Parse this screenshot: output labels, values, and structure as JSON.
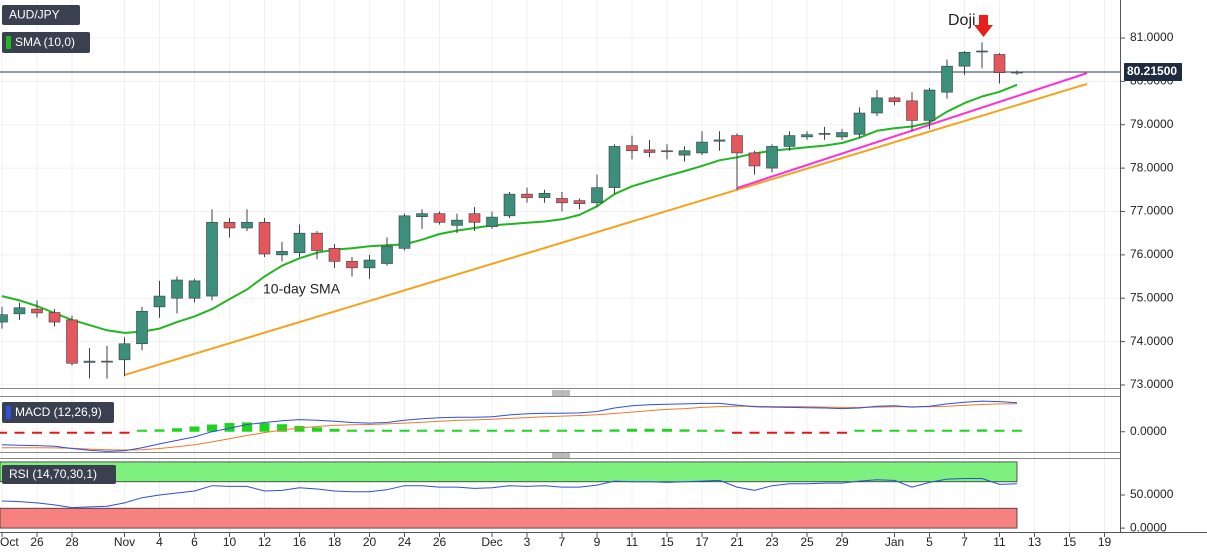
{
  "chart_data": {
    "type": "candlestick",
    "title": "AUD/JPY",
    "up_color": "#3b8f7b",
    "down_color": "#e4585c",
    "open": [
      74.45,
      74.64,
      74.75,
      74.67,
      74.5,
      73.52,
      73.53,
      73.58,
      73.95,
      74.8,
      75.0,
      75.0,
      75.05,
      76.75,
      76.62,
      76.75,
      76.0,
      76.05,
      76.5,
      76.15,
      75.85,
      75.7,
      75.8,
      76.15,
      76.88,
      76.95,
      76.68,
      76.95,
      76.65,
      76.9,
      77.4,
      77.32,
      77.3,
      77.25,
      77.2,
      77.55,
      78.52,
      78.42,
      78.4,
      78.3,
      78.35,
      78.62,
      78.75,
      78.35,
      78.0,
      78.5,
      78.72,
      78.78,
      78.72,
      78.78,
      79.27,
      79.62,
      79.55,
      79.1,
      79.75,
      80.35,
      80.68,
      80.62,
      80.2
    ],
    "high": [
      74.8,
      74.9,
      74.95,
      74.75,
      74.6,
      73.85,
      73.9,
      74.1,
      74.8,
      75.4,
      75.5,
      75.45,
      77.05,
      76.85,
      77.05,
      76.85,
      76.3,
      76.7,
      76.55,
      76.25,
      75.95,
      76.0,
      76.4,
      76.95,
      77.05,
      77.0,
      76.95,
      77.1,
      77.0,
      77.45,
      77.55,
      77.5,
      77.45,
      77.3,
      77.85,
      78.55,
      78.75,
      78.65,
      78.55,
      78.5,
      78.85,
      78.85,
      78.8,
      78.4,
      78.55,
      78.85,
      78.85,
      78.95,
      78.9,
      79.4,
      79.8,
      79.65,
      79.75,
      79.85,
      80.5,
      80.7,
      80.9,
      80.65,
      80.25
    ],
    "low": [
      74.3,
      74.5,
      74.55,
      74.35,
      73.45,
      73.15,
      73.15,
      73.2,
      73.8,
      74.55,
      74.65,
      74.9,
      74.95,
      76.4,
      76.55,
      75.95,
      75.85,
      75.95,
      75.9,
      75.7,
      75.5,
      75.45,
      75.75,
      76.1,
      76.6,
      76.7,
      76.5,
      76.55,
      76.6,
      76.85,
      77.2,
      77.2,
      77.0,
      77.05,
      77.1,
      77.4,
      78.2,
      78.25,
      78.2,
      78.15,
      78.3,
      78.4,
      77.5,
      77.85,
      77.9,
      78.4,
      78.65,
      78.65,
      78.65,
      78.7,
      79.2,
      79.45,
      78.85,
      78.9,
      79.6,
      80.15,
      80.3,
      79.95,
      80.15
    ],
    "close": [
      74.62,
      74.78,
      74.66,
      74.45,
      73.5,
      73.55,
      73.55,
      73.95,
      74.7,
      75.05,
      75.42,
      75.4,
      76.75,
      76.62,
      76.75,
      76.02,
      76.08,
      76.5,
      76.1,
      75.85,
      75.7,
      75.88,
      76.2,
      76.9,
      76.95,
      76.75,
      76.8,
      76.75,
      76.87,
      77.4,
      77.32,
      77.42,
      77.2,
      77.18,
      77.55,
      78.5,
      78.4,
      78.36,
      78.38,
      78.4,
      78.6,
      78.65,
      78.35,
      78.05,
      78.5,
      78.75,
      78.77,
      78.8,
      78.82,
      79.27,
      79.62,
      79.53,
      79.1,
      79.8,
      80.35,
      80.67,
      80.7,
      80.2,
      80.215
    ],
    "sma": {
      "name": "SMA (10,0)",
      "color": "#22b522",
      "values": [
        75.05,
        74.95,
        74.82,
        74.66,
        74.5,
        74.38,
        74.26,
        74.2,
        74.23,
        74.3,
        74.45,
        74.58,
        74.75,
        74.98,
        75.2,
        75.5,
        75.75,
        75.92,
        76.05,
        76.12,
        76.15,
        76.2,
        76.22,
        76.24,
        76.35,
        76.48,
        76.56,
        76.62,
        76.68,
        76.71,
        76.74,
        76.77,
        76.82,
        76.92,
        77.12,
        77.4,
        77.58,
        77.7,
        77.82,
        77.93,
        78.05,
        78.18,
        78.25,
        78.34,
        78.4,
        78.44,
        78.48,
        78.52,
        78.58,
        78.7,
        78.86,
        78.92,
        78.96,
        79.05,
        79.3,
        79.5,
        79.65,
        79.76,
        79.92
      ]
    },
    "trendlines": [
      {
        "color": "#f5a21c",
        "points": [
          [
            7,
            73.23
          ],
          [
            62,
            79.94
          ]
        ]
      },
      {
        "color": "#ff2ed6",
        "points": [
          [
            42,
            77.54
          ],
          [
            62,
            80.19
          ]
        ]
      }
    ],
    "annotations": [
      "Doji",
      "10-day SMA"
    ],
    "last_price": {
      "value": 80.215,
      "label": "80.21500"
    },
    "grid": true,
    "xlim": [
      0,
      64
    ],
    "xticks": [
      {
        "value": 0,
        "label": "Oct"
      },
      {
        "value": 2,
        "label": "26"
      },
      {
        "value": 4,
        "label": "28"
      },
      {
        "value": 7,
        "label": "Nov"
      },
      {
        "value": 9,
        "label": "4"
      },
      {
        "value": 11,
        "label": "6"
      },
      {
        "value": 13,
        "label": "10"
      },
      {
        "value": 15,
        "label": "12"
      },
      {
        "value": 17,
        "label": "16"
      },
      {
        "value": 19,
        "label": "18"
      },
      {
        "value": 21,
        "label": "20"
      },
      {
        "value": 23,
        "label": "24"
      },
      {
        "value": 25,
        "label": "26"
      },
      {
        "value": 28,
        "label": "Dec"
      },
      {
        "value": 30,
        "label": "3"
      },
      {
        "value": 32,
        "label": "7"
      },
      {
        "value": 34,
        "label": "9"
      },
      {
        "value": 36,
        "label": "11"
      },
      {
        "value": 38,
        "label": "15"
      },
      {
        "value": 40,
        "label": "17"
      },
      {
        "value": 42,
        "label": "21"
      },
      {
        "value": 44,
        "label": "23"
      },
      {
        "value": 46,
        "label": "25"
      },
      {
        "value": 48,
        "label": "29"
      },
      {
        "value": 51,
        "label": "Jan"
      },
      {
        "value": 53,
        "label": "5"
      },
      {
        "value": 55,
        "label": "7"
      },
      {
        "value": 57,
        "label": "11"
      },
      {
        "value": 59,
        "label": "13"
      },
      {
        "value": 61,
        "label": "15"
      },
      {
        "value": 63,
        "label": "19"
      }
    ],
    "ylim": [
      72.93,
      81.876
    ],
    "yticks": [
      {
        "value": 81,
        "label": "81.0000"
      },
      {
        "value": 80,
        "label": "80.0000"
      },
      {
        "value": 79,
        "label": "79.0000"
      },
      {
        "value": 78,
        "label": "78.0000"
      },
      {
        "value": 77,
        "label": "77.0000"
      },
      {
        "value": 76,
        "label": "76.0000"
      },
      {
        "value": 75,
        "label": "75.0000"
      },
      {
        "value": 74,
        "label": "74.0000"
      },
      {
        "value": 73,
        "label": "73.0000"
      }
    ],
    "macd": {
      "label": "MACD (12,26,9)",
      "ylim": [
        -0.7,
        1.2
      ],
      "yticks": [
        {
          "value": 0,
          "label": "0.0000"
        }
      ],
      "line": {
        "color": "#2f4fe0",
        "values": [
          -0.45,
          -0.47,
          -0.48,
          -0.5,
          -0.58,
          -0.64,
          -0.68,
          -0.66,
          -0.55,
          -0.42,
          -0.3,
          -0.18,
          0.0,
          0.12,
          0.25,
          0.32,
          0.38,
          0.42,
          0.4,
          0.36,
          0.32,
          0.3,
          0.32,
          0.4,
          0.45,
          0.48,
          0.5,
          0.5,
          0.52,
          0.58,
          0.62,
          0.64,
          0.64,
          0.65,
          0.7,
          0.82,
          0.9,
          0.93,
          0.95,
          0.96,
          0.98,
          0.98,
          0.92,
          0.86,
          0.85,
          0.84,
          0.83,
          0.82,
          0.8,
          0.82,
          0.88,
          0.9,
          0.85,
          0.88,
          0.96,
          1.02,
          1.06,
          1.04,
          1.0
        ]
      },
      "signal": {
        "color": "#f07a2a",
        "values": [
          -0.55,
          -0.55,
          -0.55,
          -0.56,
          -0.57,
          -0.6,
          -0.62,
          -0.63,
          -0.62,
          -0.58,
          -0.52,
          -0.45,
          -0.35,
          -0.24,
          -0.13,
          -0.03,
          0.06,
          0.13,
          0.18,
          0.22,
          0.24,
          0.25,
          0.27,
          0.3,
          0.33,
          0.36,
          0.39,
          0.41,
          0.43,
          0.46,
          0.49,
          0.52,
          0.54,
          0.56,
          0.59,
          0.63,
          0.68,
          0.73,
          0.77,
          0.8,
          0.84,
          0.87,
          0.88,
          0.88,
          0.87,
          0.87,
          0.86,
          0.85,
          0.84,
          0.84,
          0.85,
          0.86,
          0.86,
          0.86,
          0.88,
          0.91,
          0.94,
          0.96,
          0.97
        ]
      },
      "histogram": {
        "up_color": "#1ed41e",
        "down_color": "#e01818",
        "values": [
          -0.06,
          -0.06,
          -0.06,
          -0.06,
          -0.06,
          -0.06,
          -0.06,
          -0.04,
          0.04,
          0.08,
          0.12,
          0.18,
          0.25,
          0.3,
          0.32,
          0.3,
          0.26,
          0.2,
          0.15,
          0.1,
          0.07,
          0.05,
          0.05,
          0.06,
          0.06,
          0.06,
          0.05,
          0.05,
          0.05,
          0.06,
          0.06,
          0.06,
          0.05,
          0.05,
          0.05,
          0.08,
          0.1,
          0.1,
          0.1,
          0.08,
          0.06,
          0.04,
          -0.02,
          -0.03,
          -0.03,
          -0.03,
          -0.03,
          -0.03,
          -0.02,
          0.0,
          0.02,
          0.03,
          0.0,
          0.02,
          0.05,
          0.07,
          0.08,
          0.06,
          0.04
        ]
      }
    },
    "rsi": {
      "label": "RSI (14,70,30,1)",
      "ylim": [
        -5.9,
        104.4
      ],
      "yticks": [
        {
          "value": 50,
          "label": "50.0000"
        },
        {
          "value": 0,
          "label": "0.0000"
        }
      ],
      "color": "#2f4fd8",
      "bands": [
        {
          "from": 70,
          "to": 100,
          "color": "#7ef07e"
        },
        {
          "from": 0,
          "to": 30,
          "color": "#f78080"
        }
      ],
      "values": [
        41,
        40,
        38,
        35,
        31,
        32,
        33,
        38,
        46,
        50,
        53,
        56,
        64,
        63,
        63,
        56,
        57,
        61,
        59,
        56,
        55,
        55,
        58,
        64,
        64,
        62,
        62,
        60,
        61,
        64,
        63,
        64,
        62,
        62,
        65,
        71,
        70,
        70,
        69,
        70,
        71,
        72,
        62,
        57,
        64,
        67,
        67,
        68,
        68,
        71,
        73,
        72,
        62,
        69,
        74,
        75,
        75,
        66,
        67
      ]
    }
  }
}
